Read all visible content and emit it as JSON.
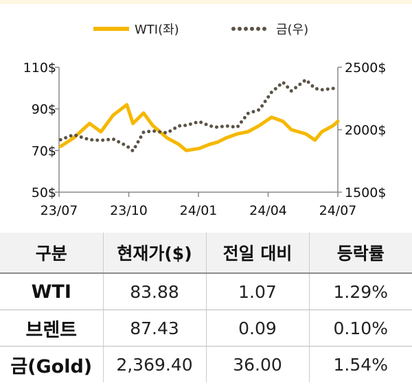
{
  "legend": {
    "wti": "WTI(좌)",
    "gold": "금(우)"
  },
  "colors": {
    "wti": "#f5b800",
    "gold": "#5c5347"
  },
  "chart_data": {
    "type": "line",
    "x_ticks": [
      "23/07",
      "23/10",
      "24/01",
      "24/04",
      "24/07"
    ],
    "y_left_ticks": [
      "110$",
      "90$",
      "70$",
      "50$"
    ],
    "y_right_ticks": [
      "2500$",
      "2000$",
      "1500$"
    ],
    "y_left_range": [
      50,
      110
    ],
    "y_right_range": [
      1500,
      2500
    ],
    "x_range": [
      "2023-07-01",
      "2024-07-01"
    ],
    "series": [
      {
        "name": "WTI(좌)",
        "axis": "left",
        "style": "solid",
        "points": [
          [
            "2023-07-03",
            72
          ],
          [
            "2023-07-20",
            76
          ],
          [
            "2023-08-10",
            83
          ],
          [
            "2023-08-25",
            79
          ],
          [
            "2023-09-10",
            87
          ],
          [
            "2023-09-28",
            92
          ],
          [
            "2023-10-06",
            83
          ],
          [
            "2023-10-20",
            88
          ],
          [
            "2023-11-01",
            82
          ],
          [
            "2023-11-20",
            76
          ],
          [
            "2023-12-05",
            73
          ],
          [
            "2023-12-15",
            70
          ],
          [
            "2024-01-01",
            71
          ],
          [
            "2024-01-15",
            73
          ],
          [
            "2024-01-25",
            74
          ],
          [
            "2024-02-05",
            76
          ],
          [
            "2024-02-20",
            78
          ],
          [
            "2024-03-05",
            79
          ],
          [
            "2024-03-20",
            82
          ],
          [
            "2024-04-05",
            86
          ],
          [
            "2024-04-20",
            84
          ],
          [
            "2024-05-01",
            80
          ],
          [
            "2024-05-20",
            78
          ],
          [
            "2024-06-01",
            75
          ],
          [
            "2024-06-10",
            79
          ],
          [
            "2024-06-25",
            82
          ],
          [
            "2024-07-01",
            84
          ]
        ]
      },
      {
        "name": "금(우)",
        "axis": "right",
        "style": "dotted",
        "points": [
          [
            "2023-07-03",
            1920
          ],
          [
            "2023-07-20",
            1960
          ],
          [
            "2023-08-10",
            1920
          ],
          [
            "2023-08-25",
            1915
          ],
          [
            "2023-09-10",
            1925
          ],
          [
            "2023-09-28",
            1870
          ],
          [
            "2023-10-06",
            1830
          ],
          [
            "2023-10-20",
            1980
          ],
          [
            "2023-11-01",
            1990
          ],
          [
            "2023-11-20",
            1975
          ],
          [
            "2023-12-05",
            2030
          ],
          [
            "2023-12-15",
            2035
          ],
          [
            "2024-01-01",
            2065
          ],
          [
            "2024-01-15",
            2030
          ],
          [
            "2024-01-25",
            2020
          ],
          [
            "2024-02-05",
            2030
          ],
          [
            "2024-02-20",
            2020
          ],
          [
            "2024-03-05",
            2130
          ],
          [
            "2024-03-20",
            2160
          ],
          [
            "2024-04-05",
            2300
          ],
          [
            "2024-04-20",
            2380
          ],
          [
            "2024-05-01",
            2310
          ],
          [
            "2024-05-20",
            2400
          ],
          [
            "2024-06-01",
            2330
          ],
          [
            "2024-06-10",
            2320
          ],
          [
            "2024-06-25",
            2330
          ],
          [
            "2024-07-01",
            2320
          ]
        ]
      }
    ]
  },
  "table": {
    "headers": [
      "구분",
      "현재가($)",
      "전일 대비",
      "등락률"
    ],
    "rows": [
      {
        "name": "WTI",
        "price": "83.88",
        "change": "1.07",
        "rate": "1.29%"
      },
      {
        "name": "브렌트",
        "price": "87.43",
        "change": "0.09",
        "rate": "0.10%"
      },
      {
        "name": "금(Gold)",
        "price": "2,369.40",
        "change": "36.00",
        "rate": "1.54%"
      }
    ]
  }
}
